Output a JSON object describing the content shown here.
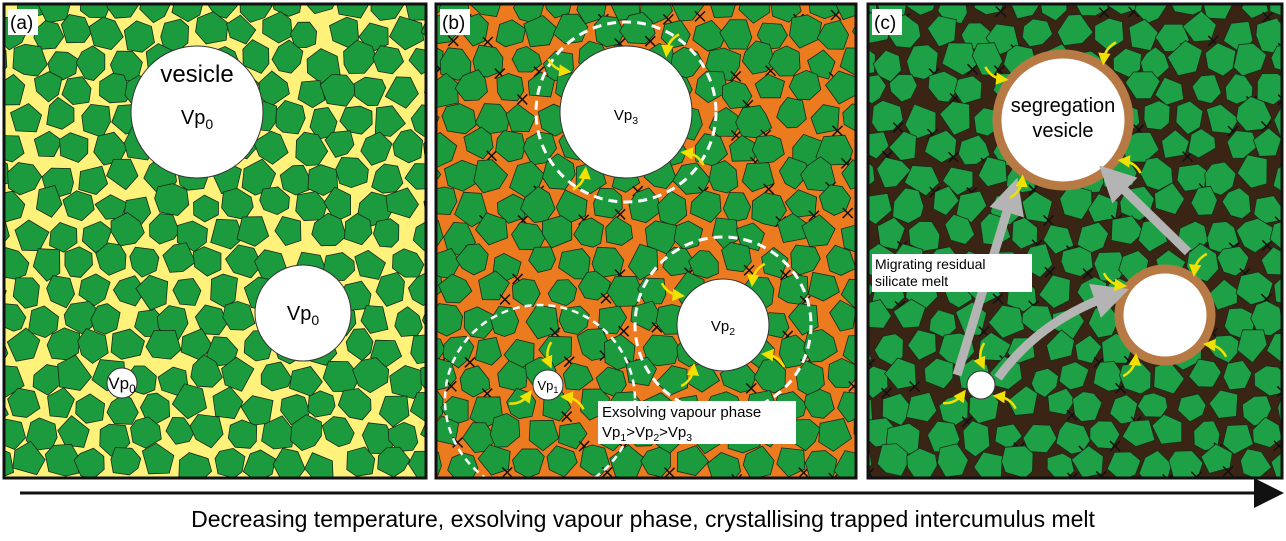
{
  "panels": [
    {
      "label": "(a)",
      "vesicle_caption": "vesicle",
      "vesicle_labels": [
        {
          "text": "Vp",
          "sub": "0"
        },
        {
          "text": "Vp",
          "sub": "0"
        },
        {
          "text": "Vp",
          "sub": "0"
        }
      ]
    },
    {
      "label": "(b)",
      "vesicle_labels": [
        {
          "text": "Vp",
          "sub": "3"
        },
        {
          "text": "Vp",
          "sub": "2"
        },
        {
          "text": "Vp",
          "sub": "1"
        }
      ],
      "note": {
        "line1": "Exsolving vapour phase",
        "line2": [
          {
            "text": "Vp",
            "sub": "1"
          },
          {
            "text": ">Vp",
            "sub": "2"
          },
          {
            "text": ">Vp",
            "sub": "3"
          }
        ]
      }
    },
    {
      "label": "(c)",
      "vesicle_caption": [
        "segregation",
        "vesicle"
      ],
      "note": [
        "Migrating residual",
        "silicate melt"
      ]
    }
  ],
  "caption": "Decreasing temperature, exsolving vapour phase, crystallising trapped intercumulus melt"
}
